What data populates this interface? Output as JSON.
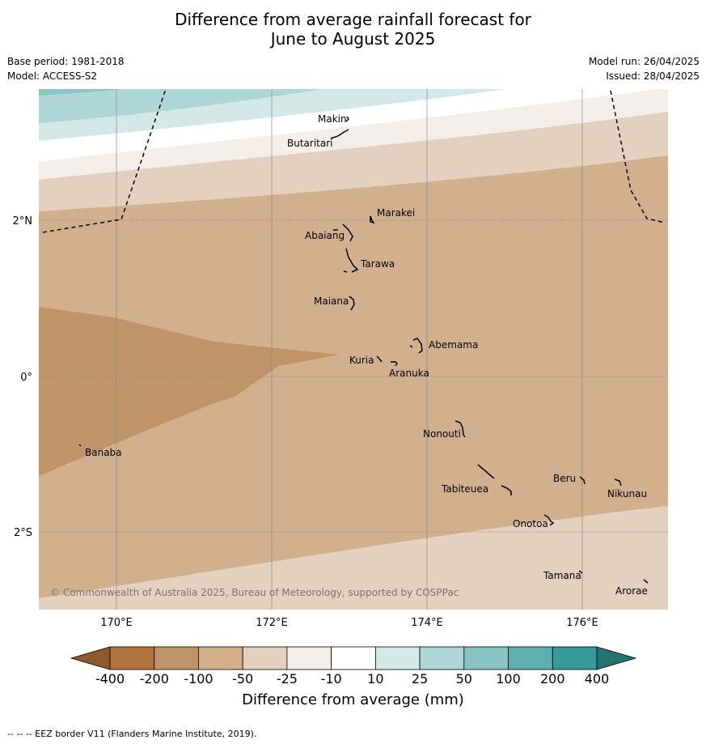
{
  "title": {
    "line1": "Difference from average rainfall forecast for",
    "line2": "June to August 2025"
  },
  "meta": {
    "base_period": "Base period: 1981-2018",
    "model": "Model: ACCESS-S2",
    "model_run": "Model run: 26/04/2025",
    "issued": "Issued: 28/04/2025"
  },
  "map": {
    "lon_range": [
      169.0,
      177.1
    ],
    "lat_range": [
      -2.95,
      3.75
    ],
    "lat_ticks": [
      {
        "value": 2,
        "label": "2°N"
      },
      {
        "value": 0,
        "label": "0°"
      },
      {
        "value": -2,
        "label": "2°S"
      }
    ],
    "lon_ticks": [
      {
        "value": 170,
        "label": "170°E"
      },
      {
        "value": 172,
        "label": "172°E"
      },
      {
        "value": 174,
        "label": "174°E"
      },
      {
        "value": 176,
        "label": "176°E"
      }
    ],
    "places": [
      {
        "name": "Makin",
        "lon": 173.0,
        "lat": 3.35
      },
      {
        "name": "Butaritari",
        "lon": 172.8,
        "lat": 3.05
      },
      {
        "name": "Marakei",
        "lon": 173.35,
        "lat": 2.0
      },
      {
        "name": "Abaiang",
        "lon": 172.98,
        "lat": 1.83
      },
      {
        "name": "Tarawa",
        "lon": 173.0,
        "lat": 1.45
      },
      {
        "name": "Maiana",
        "lon": 173.02,
        "lat": 0.93
      },
      {
        "name": "Abemama",
        "lon": 173.85,
        "lat": 0.4
      },
      {
        "name": "Kuria",
        "lon": 173.4,
        "lat": 0.23
      },
      {
        "name": "Aranuka",
        "lon": 173.6,
        "lat": 0.17
      },
      {
        "name": "Nonouti",
        "lon": 174.45,
        "lat": -0.65
      },
      {
        "name": "Banaba",
        "lon": 169.55,
        "lat": -0.87
      },
      {
        "name": "Beru",
        "lon": 176.0,
        "lat": -1.3
      },
      {
        "name": "Nikunau",
        "lon": 176.45,
        "lat": -1.38
      },
      {
        "name": "Tabiteuea",
        "lon": 174.8,
        "lat": -1.35
      },
      {
        "name": "Onotoa",
        "lon": 175.55,
        "lat": -1.83
      },
      {
        "name": "Tamana",
        "lon": 175.98,
        "lat": -2.5
      },
      {
        "name": "Arorae",
        "lon": 176.82,
        "lat": -2.65
      }
    ],
    "copyright": "© Commonwealth of Australia 2025, Bureau of Meteorology, supported by COSPPac"
  },
  "legend": {
    "labels": [
      "-400",
      "-200",
      "-100",
      "-50",
      "-25",
      "-10",
      "10",
      "25",
      "50",
      "100",
      "200",
      "400"
    ],
    "colors": [
      "#8c5a2e",
      "#b0743c",
      "#c09469",
      "#d2b08e",
      "#e3d0bf",
      "#f3eeea",
      "#ffffff",
      "#d5e8e8",
      "#afd6d6",
      "#87c4c2",
      "#5eb0ae",
      "#349b99",
      "#237472"
    ],
    "title": "Difference from average (mm)"
  },
  "footer": "--  --  -- EEZ border V11 (Flanders Marine Institute, 2019)."
}
